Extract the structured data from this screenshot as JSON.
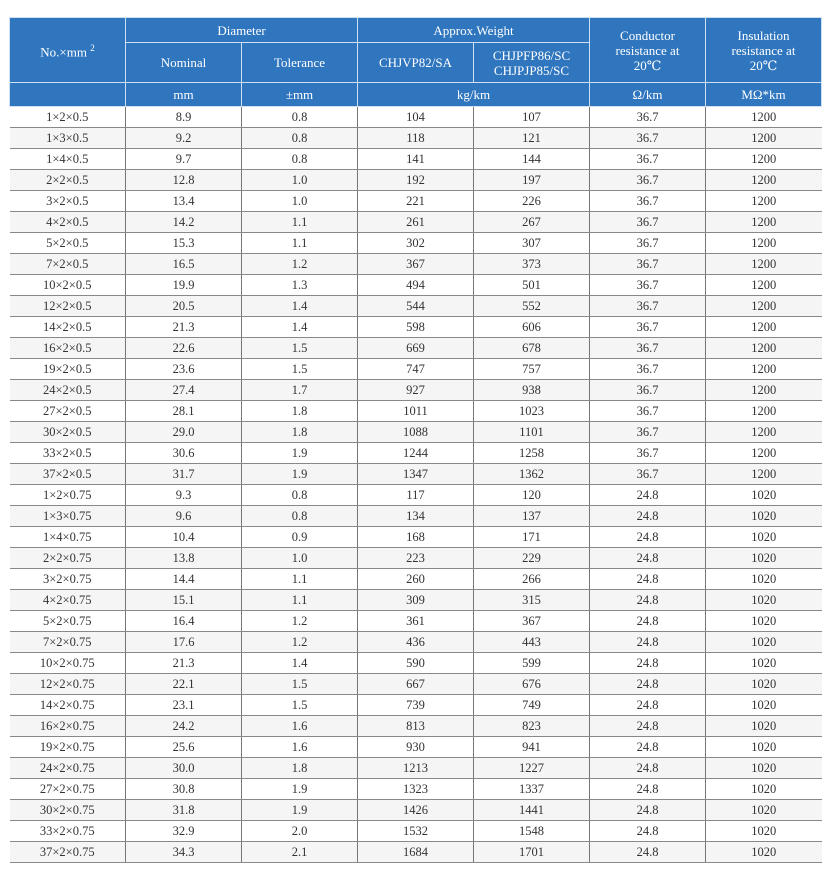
{
  "header": {
    "no_label": "No.×mm",
    "no_sup": "2",
    "diameter": "Diameter",
    "approx_weight": "Approx.Weight",
    "conductor_resistance": "Conductor resistance at 20℃",
    "insulation_resistance": "Insulation resistance at 20℃",
    "nominal": "Nominal",
    "tolerance": "Tolerance",
    "chjvp": "CHJVP82/SA",
    "chjpfp_1": "CHJPFP86/SC",
    "chjpfp_2": "CHJPJP85/SC",
    "unit_mm": "mm",
    "unit_tol": "±mm",
    "unit_weight": "kg/km",
    "unit_cond": "Ω/km",
    "unit_ins": "MΩ*km"
  },
  "colors": {
    "header_bg": "#2f76bf",
    "header_text": "#ffffff"
  },
  "rows": [
    [
      "1×2×0.5",
      "8.9",
      "0.8",
      "104",
      "107",
      "36.7",
      "1200"
    ],
    [
      "1×3×0.5",
      "9.2",
      "0.8",
      "118",
      "121",
      "36.7",
      "1200"
    ],
    [
      "1×4×0.5",
      "9.7",
      "0.8",
      "141",
      "144",
      "36.7",
      "1200"
    ],
    [
      "2×2×0.5",
      "12.8",
      "1.0",
      "192",
      "197",
      "36.7",
      "1200"
    ],
    [
      "3×2×0.5",
      "13.4",
      "1.0",
      "221",
      "226",
      "36.7",
      "1200"
    ],
    [
      "4×2×0.5",
      "14.2",
      "1.1",
      "261",
      "267",
      "36.7",
      "1200"
    ],
    [
      "5×2×0.5",
      "15.3",
      "1.1",
      "302",
      "307",
      "36.7",
      "1200"
    ],
    [
      "7×2×0.5",
      "16.5",
      "1.2",
      "367",
      "373",
      "36.7",
      "1200"
    ],
    [
      "10×2×0.5",
      "19.9",
      "1.3",
      "494",
      "501",
      "36.7",
      "1200"
    ],
    [
      "12×2×0.5",
      "20.5",
      "1.4",
      "544",
      "552",
      "36.7",
      "1200"
    ],
    [
      "14×2×0.5",
      "21.3",
      "1.4",
      "598",
      "606",
      "36.7",
      "1200"
    ],
    [
      "16×2×0.5",
      "22.6",
      "1.5",
      "669",
      "678",
      "36.7",
      "1200"
    ],
    [
      "19×2×0.5",
      "23.6",
      "1.5",
      "747",
      "757",
      "36.7",
      "1200"
    ],
    [
      "24×2×0.5",
      "27.4",
      "1.7",
      "927",
      "938",
      "36.7",
      "1200"
    ],
    [
      "27×2×0.5",
      "28.1",
      "1.8",
      "1011",
      "1023",
      "36.7",
      "1200"
    ],
    [
      "30×2×0.5",
      "29.0",
      "1.8",
      "1088",
      "1101",
      "36.7",
      "1200"
    ],
    [
      "33×2×0.5",
      "30.6",
      "1.9",
      "1244",
      "1258",
      "36.7",
      "1200"
    ],
    [
      "37×2×0.5",
      "31.7",
      "1.9",
      "1347",
      "1362",
      "36.7",
      "1200"
    ],
    [
      "1×2×0.75",
      "9.3",
      "0.8",
      "117",
      "120",
      "24.8",
      "1020"
    ],
    [
      "1×3×0.75",
      "9.6",
      "0.8",
      "134",
      "137",
      "24.8",
      "1020"
    ],
    [
      "1×4×0.75",
      "10.4",
      "0.9",
      "168",
      "171",
      "24.8",
      "1020"
    ],
    [
      "2×2×0.75",
      "13.8",
      "1.0",
      "223",
      "229",
      "24.8",
      "1020"
    ],
    [
      "3×2×0.75",
      "14.4",
      "1.1",
      "260",
      "266",
      "24.8",
      "1020"
    ],
    [
      "4×2×0.75",
      "15.1",
      "1.1",
      "309",
      "315",
      "24.8",
      "1020"
    ],
    [
      "5×2×0.75",
      "16.4",
      "1.2",
      "361",
      "367",
      "24.8",
      "1020"
    ],
    [
      "7×2×0.75",
      "17.6",
      "1.2",
      "436",
      "443",
      "24.8",
      "1020"
    ],
    [
      "10×2×0.75",
      "21.3",
      "1.4",
      "590",
      "599",
      "24.8",
      "1020"
    ],
    [
      "12×2×0.75",
      "22.1",
      "1.5",
      "667",
      "676",
      "24.8",
      "1020"
    ],
    [
      "14×2×0.75",
      "23.1",
      "1.5",
      "739",
      "749",
      "24.8",
      "1020"
    ],
    [
      "16×2×0.75",
      "24.2",
      "1.6",
      "813",
      "823",
      "24.8",
      "1020"
    ],
    [
      "19×2×0.75",
      "25.6",
      "1.6",
      "930",
      "941",
      "24.8",
      "1020"
    ],
    [
      "24×2×0.75",
      "30.0",
      "1.8",
      "1213",
      "1227",
      "24.8",
      "1020"
    ],
    [
      "27×2×0.75",
      "30.8",
      "1.9",
      "1323",
      "1337",
      "24.8",
      "1020"
    ],
    [
      "30×2×0.75",
      "31.8",
      "1.9",
      "1426",
      "1441",
      "24.8",
      "1020"
    ],
    [
      "33×2×0.75",
      "32.9",
      "2.0",
      "1532",
      "1548",
      "24.8",
      "1020"
    ],
    [
      "37×2×0.75",
      "34.3",
      "2.1",
      "1684",
      "1701",
      "24.8",
      "1020"
    ]
  ]
}
